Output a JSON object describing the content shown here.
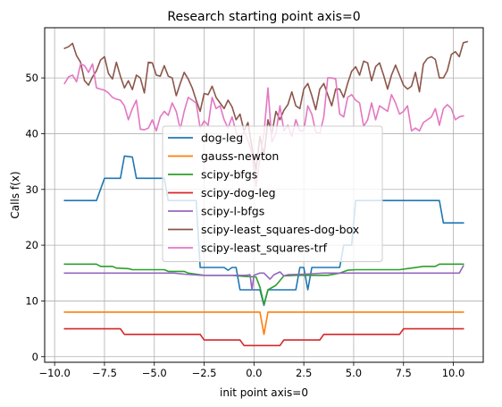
{
  "chart_data": {
    "type": "line",
    "title": "Research starting point axis=0",
    "xlabel": "init point axis=0",
    "ylabel": "Calls f(x)",
    "xlim": [
      -10.5,
      11.5
    ],
    "ylim": [
      -1,
      59
    ],
    "xticks": [
      -10.0,
      -7.5,
      -5.0,
      -2.5,
      0.0,
      2.5,
      5.0,
      7.5,
      10.0
    ],
    "xtick_labels": [
      "−10.0",
      "−7.5",
      "−5.0",
      "−2.5",
      "0.0",
      "2.5",
      "5.0",
      "7.5",
      "10.0"
    ],
    "yticks": [
      0,
      10,
      20,
      30,
      40,
      50
    ],
    "ytick_labels": [
      "0",
      "10",
      "20",
      "30",
      "40",
      "50"
    ],
    "grid": true,
    "legend_position": "center",
    "series": [
      {
        "name": "dog-leg",
        "color": "#1f77b4",
        "points": [
          [
            -9.5,
            28
          ],
          [
            -7.9,
            28
          ],
          [
            -7.5,
            32
          ],
          [
            -6.7,
            32
          ],
          [
            -6.5,
            36
          ],
          [
            -6.1,
            35.8
          ],
          [
            -5.9,
            32
          ],
          [
            -4.5,
            32
          ],
          [
            -4.3,
            28
          ],
          [
            -2.9,
            28
          ],
          [
            -2.7,
            16
          ],
          [
            -1.5,
            16
          ],
          [
            -1.3,
            15.5
          ],
          [
            -1.1,
            16
          ],
          [
            -0.9,
            16
          ],
          [
            -0.7,
            12
          ],
          [
            0.3,
            12
          ],
          [
            0.5,
            9.2
          ],
          [
            0.7,
            12
          ],
          [
            2.1,
            12
          ],
          [
            2.3,
            16
          ],
          [
            2.5,
            16
          ],
          [
            2.7,
            12
          ],
          [
            2.9,
            16
          ],
          [
            4.3,
            16
          ],
          [
            4.5,
            20
          ],
          [
            4.9,
            20
          ],
          [
            5.1,
            28
          ],
          [
            9.3,
            28
          ],
          [
            9.5,
            24
          ],
          [
            10.5,
            24
          ]
        ]
      },
      {
        "name": "gauss-newton",
        "color": "#ff7f0e",
        "points": [
          [
            -9.5,
            8
          ],
          [
            0.3,
            8
          ],
          [
            0.5,
            4
          ],
          [
            0.7,
            8
          ],
          [
            10.5,
            8
          ]
        ]
      },
      {
        "name": "scipy-bfgs",
        "color": "#2ca02c",
        "points": [
          [
            -9.5,
            16.6
          ],
          [
            -7.9,
            16.6
          ],
          [
            -7.7,
            16.2
          ],
          [
            -7.1,
            16.2
          ],
          [
            -6.9,
            15.9
          ],
          [
            -6.3,
            15.8
          ],
          [
            -6.1,
            15.6
          ],
          [
            -4.5,
            15.6
          ],
          [
            -4.3,
            15.3
          ],
          [
            -3.5,
            15.3
          ],
          [
            -3.3,
            15
          ],
          [
            -2.5,
            14.6
          ],
          [
            -1.1,
            14.6
          ],
          [
            -0.5,
            14.4
          ],
          [
            0.1,
            14.3
          ],
          [
            0.3,
            12.5
          ],
          [
            0.5,
            9.4
          ],
          [
            0.7,
            12
          ],
          [
            1.1,
            12.8
          ],
          [
            1.5,
            14.5
          ],
          [
            2.1,
            14.6
          ],
          [
            3.7,
            14.6
          ],
          [
            4.3,
            15
          ],
          [
            4.7,
            15.5
          ],
          [
            5.1,
            15.6
          ],
          [
            7.3,
            15.6
          ],
          [
            7.9,
            15.9
          ],
          [
            8.5,
            16.2
          ],
          [
            9.1,
            16.2
          ],
          [
            9.3,
            16.6
          ],
          [
            10.5,
            16.6
          ]
        ]
      },
      {
        "name": "scipy-dog-leg",
        "color": "#d62728",
        "points": [
          [
            -9.5,
            5
          ],
          [
            -6.7,
            5
          ],
          [
            -6.5,
            4
          ],
          [
            -2.7,
            4
          ],
          [
            -2.5,
            3
          ],
          [
            -0.7,
            3
          ],
          [
            -0.5,
            2
          ],
          [
            1.3,
            2
          ],
          [
            1.5,
            3
          ],
          [
            3.3,
            3
          ],
          [
            3.5,
            4
          ],
          [
            7.3,
            4
          ],
          [
            7.5,
            5
          ],
          [
            10.5,
            5
          ]
        ]
      },
      {
        "name": "scipy-l-bfgs",
        "color": "#9467bd",
        "points": [
          [
            -9.5,
            15
          ],
          [
            -4.0,
            15
          ],
          [
            -3.5,
            14.8
          ],
          [
            -2.6,
            14.6
          ],
          [
            -0.4,
            14.6
          ],
          [
            -0.2,
            14.7
          ],
          [
            -0.1,
            12
          ],
          [
            0.0,
            14.6
          ],
          [
            0.3,
            15
          ],
          [
            0.5,
            15
          ],
          [
            0.8,
            13.9
          ],
          [
            1.0,
            14.7
          ],
          [
            1.3,
            15.2
          ],
          [
            1.5,
            14.5
          ],
          [
            1.7,
            14.7
          ],
          [
            2.5,
            14.8
          ],
          [
            3.5,
            15
          ],
          [
            10.3,
            15
          ],
          [
            10.5,
            16.3
          ]
        ]
      },
      {
        "name": "scipy-least_squares-dog-box",
        "color": "#8c564b",
        "points": [
          [
            -9.5,
            55.3
          ],
          [
            -9.3,
            55.6
          ],
          [
            -9.1,
            56.2
          ],
          [
            -8.9,
            54.0
          ],
          [
            -8.7,
            52.8
          ],
          [
            -8.5,
            49.5
          ],
          [
            -8.3,
            48.7
          ],
          [
            -8.1,
            50.2
          ],
          [
            -7.9,
            51.3
          ],
          [
            -7.7,
            53.2
          ],
          [
            -7.5,
            53.8
          ],
          [
            -7.3,
            50.8
          ],
          [
            -7.1,
            49.8
          ],
          [
            -6.9,
            52.8
          ],
          [
            -6.7,
            50.3
          ],
          [
            -6.5,
            48.2
          ],
          [
            -6.3,
            49.5
          ],
          [
            -6.1,
            47.9
          ],
          [
            -5.9,
            50.5
          ],
          [
            -5.7,
            50.0
          ],
          [
            -5.5,
            47.3
          ],
          [
            -5.3,
            52.8
          ],
          [
            -5.1,
            52.7
          ],
          [
            -4.9,
            50.5
          ],
          [
            -4.7,
            50.3
          ],
          [
            -4.5,
            52.2
          ],
          [
            -4.3,
            50.3
          ],
          [
            -4.1,
            50.0
          ],
          [
            -3.9,
            46.8
          ],
          [
            -3.7,
            49.0
          ],
          [
            -3.5,
            51.0
          ],
          [
            -3.3,
            49.8
          ],
          [
            -3.1,
            48.2
          ],
          [
            -2.9,
            46.0
          ],
          [
            -2.7,
            44.0
          ],
          [
            -2.5,
            47.2
          ],
          [
            -2.3,
            47.0
          ],
          [
            -2.1,
            48.5
          ],
          [
            -1.9,
            46.5
          ],
          [
            -1.7,
            45.5
          ],
          [
            -1.5,
            44.5
          ],
          [
            -1.3,
            46.0
          ],
          [
            -1.1,
            44.8
          ],
          [
            -0.9,
            42.5
          ],
          [
            -0.7,
            43.5
          ],
          [
            -0.5,
            40.5
          ],
          [
            -0.3,
            42.0
          ],
          [
            -0.1,
            37.5
          ],
          [
            0.1,
            33.5
          ],
          [
            0.3,
            39.5
          ],
          [
            0.5,
            36.0
          ],
          [
            0.7,
            42.5
          ],
          [
            0.9,
            40.0
          ],
          [
            1.1,
            44.0
          ],
          [
            1.3,
            42.5
          ],
          [
            1.5,
            44.2
          ],
          [
            1.7,
            45.2
          ],
          [
            1.9,
            47.5
          ],
          [
            2.1,
            45.0
          ],
          [
            2.3,
            44.5
          ],
          [
            2.5,
            48.0
          ],
          [
            2.7,
            49.0
          ],
          [
            2.9,
            46.8
          ],
          [
            3.1,
            44.3
          ],
          [
            3.3,
            48.0
          ],
          [
            3.5,
            49.0
          ],
          [
            3.7,
            47.0
          ],
          [
            3.9,
            45.0
          ],
          [
            4.1,
            48.0
          ],
          [
            4.3,
            48.0
          ],
          [
            4.5,
            46.5
          ],
          [
            4.7,
            49.0
          ],
          [
            4.9,
            51.2
          ],
          [
            5.1,
            52.0
          ],
          [
            5.3,
            50.5
          ],
          [
            5.5,
            53.0
          ],
          [
            5.7,
            52.7
          ],
          [
            5.9,
            49.5
          ],
          [
            6.1,
            52.0
          ],
          [
            6.3,
            52.7
          ],
          [
            6.5,
            50.5
          ],
          [
            6.7,
            48.0
          ],
          [
            6.9,
            50.5
          ],
          [
            7.1,
            52.3
          ],
          [
            7.3,
            50.5
          ],
          [
            7.5,
            48.7
          ],
          [
            7.7,
            48.0
          ],
          [
            7.9,
            48.5
          ],
          [
            8.1,
            51.0
          ],
          [
            8.3,
            47.5
          ],
          [
            8.5,
            52.5
          ],
          [
            8.7,
            53.5
          ],
          [
            8.9,
            53.8
          ],
          [
            9.1,
            53.3
          ],
          [
            9.3,
            50.0
          ],
          [
            9.5,
            50.0
          ],
          [
            9.7,
            51.3
          ],
          [
            9.9,
            54.2
          ],
          [
            10.1,
            54.7
          ],
          [
            10.3,
            53.8
          ],
          [
            10.5,
            56.3
          ],
          [
            10.7,
            56.5
          ]
        ]
      },
      {
        "name": "scipy-least_squares-trf",
        "color": "#e377c2",
        "points": [
          [
            -9.5,
            49.0
          ],
          [
            -9.3,
            50.2
          ],
          [
            -9.1,
            50.5
          ],
          [
            -8.9,
            49.3
          ],
          [
            -8.7,
            52.5
          ],
          [
            -8.5,
            52.2
          ],
          [
            -8.3,
            51.0
          ],
          [
            -8.1,
            52.5
          ],
          [
            -7.9,
            48.2
          ],
          [
            -7.7,
            48.0
          ],
          [
            -7.5,
            47.8
          ],
          [
            -7.3,
            47.3
          ],
          [
            -7.1,
            46.5
          ],
          [
            -6.9,
            46.2
          ],
          [
            -6.7,
            46.0
          ],
          [
            -6.5,
            45.0
          ],
          [
            -6.3,
            42.5
          ],
          [
            -6.1,
            44.5
          ],
          [
            -5.9,
            46.0
          ],
          [
            -5.7,
            40.8
          ],
          [
            -5.5,
            40.7
          ],
          [
            -5.3,
            41.0
          ],
          [
            -5.1,
            42.5
          ],
          [
            -4.9,
            40.5
          ],
          [
            -4.7,
            43.0
          ],
          [
            -4.5,
            44.0
          ],
          [
            -4.3,
            43.3
          ],
          [
            -4.1,
            45.5
          ],
          [
            -3.9,
            44.0
          ],
          [
            -3.7,
            40.8
          ],
          [
            -3.5,
            44.0
          ],
          [
            -3.3,
            46.5
          ],
          [
            -3.1,
            46.0
          ],
          [
            -2.9,
            45.5
          ],
          [
            -2.7,
            41.0
          ],
          [
            -2.5,
            42.3
          ],
          [
            -2.3,
            41.5
          ],
          [
            -2.1,
            46.5
          ],
          [
            -1.9,
            44.5
          ],
          [
            -1.7,
            45.0
          ],
          [
            -1.5,
            42.5
          ],
          [
            -1.3,
            41.0
          ],
          [
            -1.1,
            43.0
          ],
          [
            -0.9,
            40.3
          ],
          [
            -0.7,
            38.5
          ],
          [
            -0.5,
            40.5
          ],
          [
            -0.3,
            38.8
          ],
          [
            -0.1,
            36.5
          ],
          [
            0.1,
            30.5
          ],
          [
            0.3,
            35.5
          ],
          [
            0.5,
            40.0
          ],
          [
            0.7,
            48.2
          ],
          [
            0.9,
            38.5
          ],
          [
            1.1,
            40.0
          ],
          [
            1.3,
            45.0
          ],
          [
            1.5,
            40.5
          ],
          [
            1.7,
            41.5
          ],
          [
            1.9,
            39.5
          ],
          [
            2.1,
            42.5
          ],
          [
            2.3,
            40.5
          ],
          [
            2.5,
            40.5
          ],
          [
            2.7,
            45.0
          ],
          [
            2.9,
            43.5
          ],
          [
            3.1,
            40.3
          ],
          [
            3.3,
            40.0
          ],
          [
            3.5,
            43.0
          ],
          [
            3.7,
            50.0
          ],
          [
            3.9,
            50.0
          ],
          [
            4.1,
            49.8
          ],
          [
            4.3,
            43.5
          ],
          [
            4.5,
            43.0
          ],
          [
            4.7,
            46.5
          ],
          [
            4.9,
            47.0
          ],
          [
            5.1,
            46.0
          ],
          [
            5.3,
            45.5
          ],
          [
            5.5,
            41.3
          ],
          [
            5.7,
            42.5
          ],
          [
            5.9,
            45.5
          ],
          [
            6.1,
            42.5
          ],
          [
            6.3,
            45.0
          ],
          [
            6.5,
            44.5
          ],
          [
            6.7,
            44.0
          ],
          [
            6.9,
            47.0
          ],
          [
            7.1,
            45.5
          ],
          [
            7.3,
            43.5
          ],
          [
            7.5,
            44.0
          ],
          [
            7.7,
            45.0
          ],
          [
            7.9,
            40.5
          ],
          [
            8.1,
            41.0
          ],
          [
            8.3,
            40.5
          ],
          [
            8.5,
            42.0
          ],
          [
            8.7,
            42.5
          ],
          [
            8.9,
            43.0
          ],
          [
            9.1,
            44.5
          ],
          [
            9.3,
            41.5
          ],
          [
            9.5,
            44.5
          ],
          [
            9.7,
            45.2
          ],
          [
            9.9,
            44.5
          ],
          [
            10.1,
            42.5
          ],
          [
            10.3,
            43.0
          ],
          [
            10.5,
            43.2
          ]
        ]
      }
    ]
  }
}
